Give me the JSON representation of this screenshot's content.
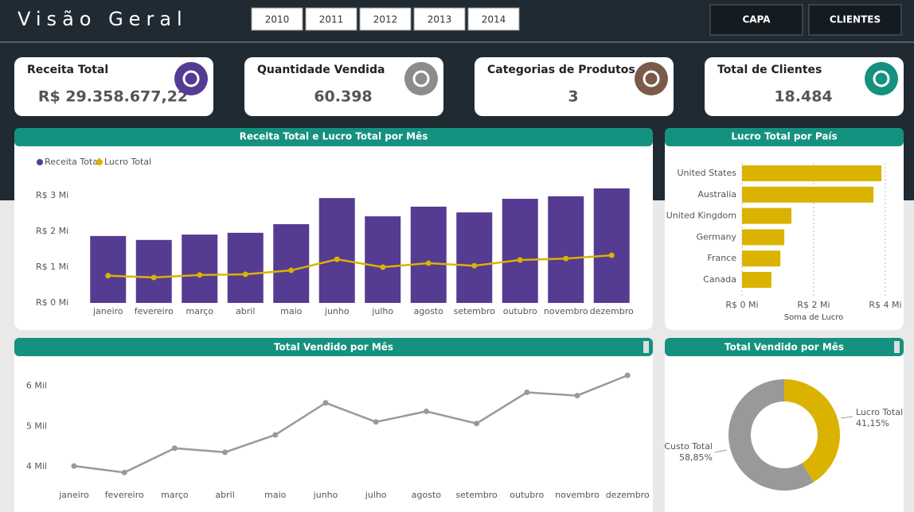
{
  "header": {
    "title": "Visão Geral",
    "years": [
      "2010",
      "2011",
      "2012",
      "2013",
      "2014"
    ],
    "buttons": [
      "CAPA",
      "CLIENTES"
    ]
  },
  "kpis": [
    {
      "title": "Receita Total",
      "value": "R$ 29.358.677,22",
      "color": "#553b91"
    },
    {
      "title": "Quantidade Vendida",
      "value": "60.398",
      "color": "#8c8c8c"
    },
    {
      "title": "Categorias de Produtos",
      "value": "3",
      "color": "#7a5a4a"
    },
    {
      "title": "Total de Clientes",
      "value": "18.484",
      "color": "#14917f"
    }
  ],
  "chart_data": [
    {
      "type": "combo",
      "title": "Receita Total e Lucro Total por Mês",
      "categories": [
        "janeiro",
        "fevereiro",
        "março",
        "abril",
        "maio",
        "junho",
        "julho",
        "agosto",
        "setembro",
        "outubro",
        "novembro",
        "dezembro"
      ],
      "series": [
        {
          "name": "Receita Total",
          "kind": "bar",
          "color": "#553b91",
          "values": [
            1.87,
            1.76,
            1.91,
            1.96,
            2.2,
            2.93,
            2.42,
            2.69,
            2.53,
            2.91,
            2.98,
            3.2
          ]
        },
        {
          "name": "Lucro Total",
          "kind": "line",
          "color": "#dab300",
          "values": [
            0.76,
            0.71,
            0.78,
            0.8,
            0.91,
            1.22,
            1.0,
            1.11,
            1.04,
            1.2,
            1.24,
            1.33
          ]
        }
      ],
      "ylim": [
        0,
        3.3
      ],
      "yticks": [
        {
          "value": 0,
          "label": "R$ 0 Mi"
        },
        {
          "value": 1,
          "label": "R$ 1 Mi"
        },
        {
          "value": 2,
          "label": "R$ 2 Mi"
        },
        {
          "value": 3,
          "label": "R$ 3 Mi"
        }
      ]
    },
    {
      "type": "hbar",
      "title": "Lucro Total por País",
      "categories": [
        "United States",
        "Australia",
        "United Kingdom",
        "Germany",
        "France",
        "Canada"
      ],
      "values": [
        3.89,
        3.67,
        1.38,
        1.18,
        1.07,
        0.82
      ],
      "color": "#dab300",
      "xlabel": "Soma de Lucro",
      "xlim": [
        0,
        4.2
      ],
      "xticks": [
        {
          "value": 0,
          "label": "R$ 0 Mi"
        },
        {
          "value": 2,
          "label": "R$ 2 Mi"
        },
        {
          "value": 4,
          "label": "R$ 4 Mi"
        }
      ]
    },
    {
      "type": "line",
      "title": "Total Vendido por Mês",
      "categories": [
        "janeiro",
        "fevereiro",
        "março",
        "abril",
        "maio",
        "junho",
        "julho",
        "agosto",
        "setembro",
        "outubro",
        "novembro",
        "dezembro"
      ],
      "values": [
        4.02,
        3.86,
        4.46,
        4.36,
        4.79,
        5.58,
        5.11,
        5.37,
        5.07,
        5.84,
        5.76,
        6.26
      ],
      "color": "#999999",
      "ylim": [
        3.65,
        6.4
      ],
      "yticks": [
        {
          "value": 4,
          "label": "4 Mil"
        },
        {
          "value": 5,
          "label": "5 Mil"
        },
        {
          "value": 6,
          "label": "6 Mil"
        }
      ]
    },
    {
      "type": "donut",
      "title": "Total Vendido por Mês",
      "categories": [
        "Lucro Total",
        "Custo Total"
      ],
      "values": [
        41.15,
        58.85
      ],
      "value_labels": [
        "41,15%",
        "58,85%"
      ],
      "colors": [
        "#dab300",
        "#999999"
      ]
    }
  ]
}
